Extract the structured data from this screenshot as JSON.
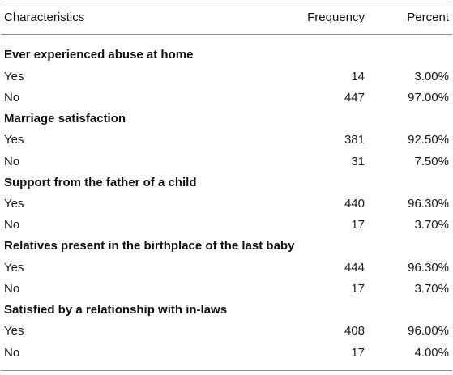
{
  "header": {
    "characteristics": "Characteristics",
    "frequency": "Frequency",
    "percent": "Percent"
  },
  "sections": [
    {
      "title": "Ever experienced abuse at home",
      "rows": [
        {
          "label": "Yes",
          "frequency": "14",
          "percent": "3.00%"
        },
        {
          "label": "No",
          "frequency": "447",
          "percent": "97.00%"
        }
      ]
    },
    {
      "title": "Marriage satisfaction",
      "rows": [
        {
          "label": "Yes",
          "frequency": "381",
          "percent": "92.50%"
        },
        {
          "label": "No",
          "frequency": "31",
          "percent": "7.50%"
        }
      ]
    },
    {
      "title": "Support from the father of a child",
      "rows": [
        {
          "label": "Yes",
          "frequency": "440",
          "percent": "96.30%"
        },
        {
          "label": "No",
          "frequency": "17",
          "percent": "3.70%"
        }
      ]
    },
    {
      "title": "Relatives present in the birthplace of the last baby",
      "rows": [
        {
          "label": "Yes",
          "frequency": "444",
          "percent": "96.30%"
        },
        {
          "label": "No",
          "frequency": "17",
          "percent": "3.70%"
        }
      ]
    },
    {
      "title": "Satisfied by a relationship with in-laws",
      "rows": [
        {
          "label": "Yes",
          "frequency": "408",
          "percent": "96.00%"
        },
        {
          "label": "No",
          "frequency": "17",
          "percent": "4.00%"
        }
      ]
    }
  ]
}
